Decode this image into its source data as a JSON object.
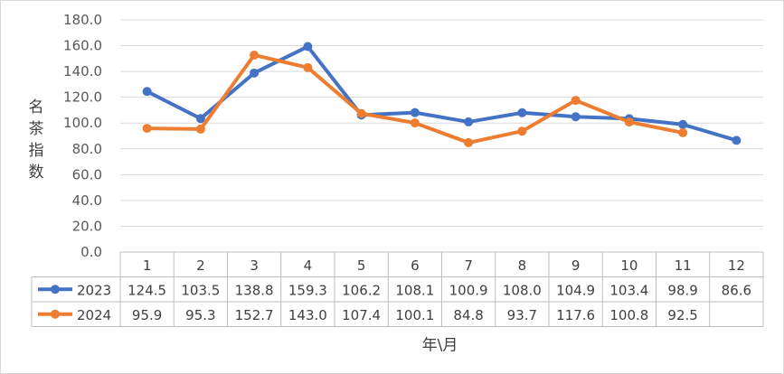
{
  "chart_data": {
    "type": "line",
    "title": "",
    "xlabel": "年\\月",
    "ylabel": "名茶指数",
    "ylim": [
      0,
      180
    ],
    "yticks": [
      "0.0",
      "20.0",
      "40.0",
      "60.0",
      "80.0",
      "100.0",
      "120.0",
      "140.0",
      "160.0",
      "180.0"
    ],
    "categories": [
      "1",
      "2",
      "3",
      "4",
      "5",
      "6",
      "7",
      "8",
      "9",
      "10",
      "11",
      "12"
    ],
    "grid": true,
    "legend": "data-table-left",
    "series": [
      {
        "name": "2023",
        "color": "#4472C4",
        "values": [
          124.5,
          103.5,
          138.8,
          159.3,
          106.2,
          108.1,
          100.9,
          108.0,
          104.9,
          103.4,
          98.9,
          86.6
        ],
        "labels": [
          "124.5",
          "103.5",
          "138.8",
          "159.3",
          "106.2",
          "108.1",
          "100.9",
          "108.0",
          "104.9",
          "103.4",
          "98.9",
          "86.6"
        ]
      },
      {
        "name": "2024",
        "color": "#ED7D31",
        "values": [
          95.9,
          95.3,
          152.7,
          143.0,
          107.4,
          100.1,
          84.8,
          93.7,
          117.6,
          100.8,
          92.5,
          null
        ],
        "labels": [
          "95.9",
          "95.3",
          "152.7",
          "143.0",
          "107.4",
          "100.1",
          "84.8",
          "93.7",
          "117.6",
          "100.8",
          "92.5",
          ""
        ]
      }
    ]
  }
}
